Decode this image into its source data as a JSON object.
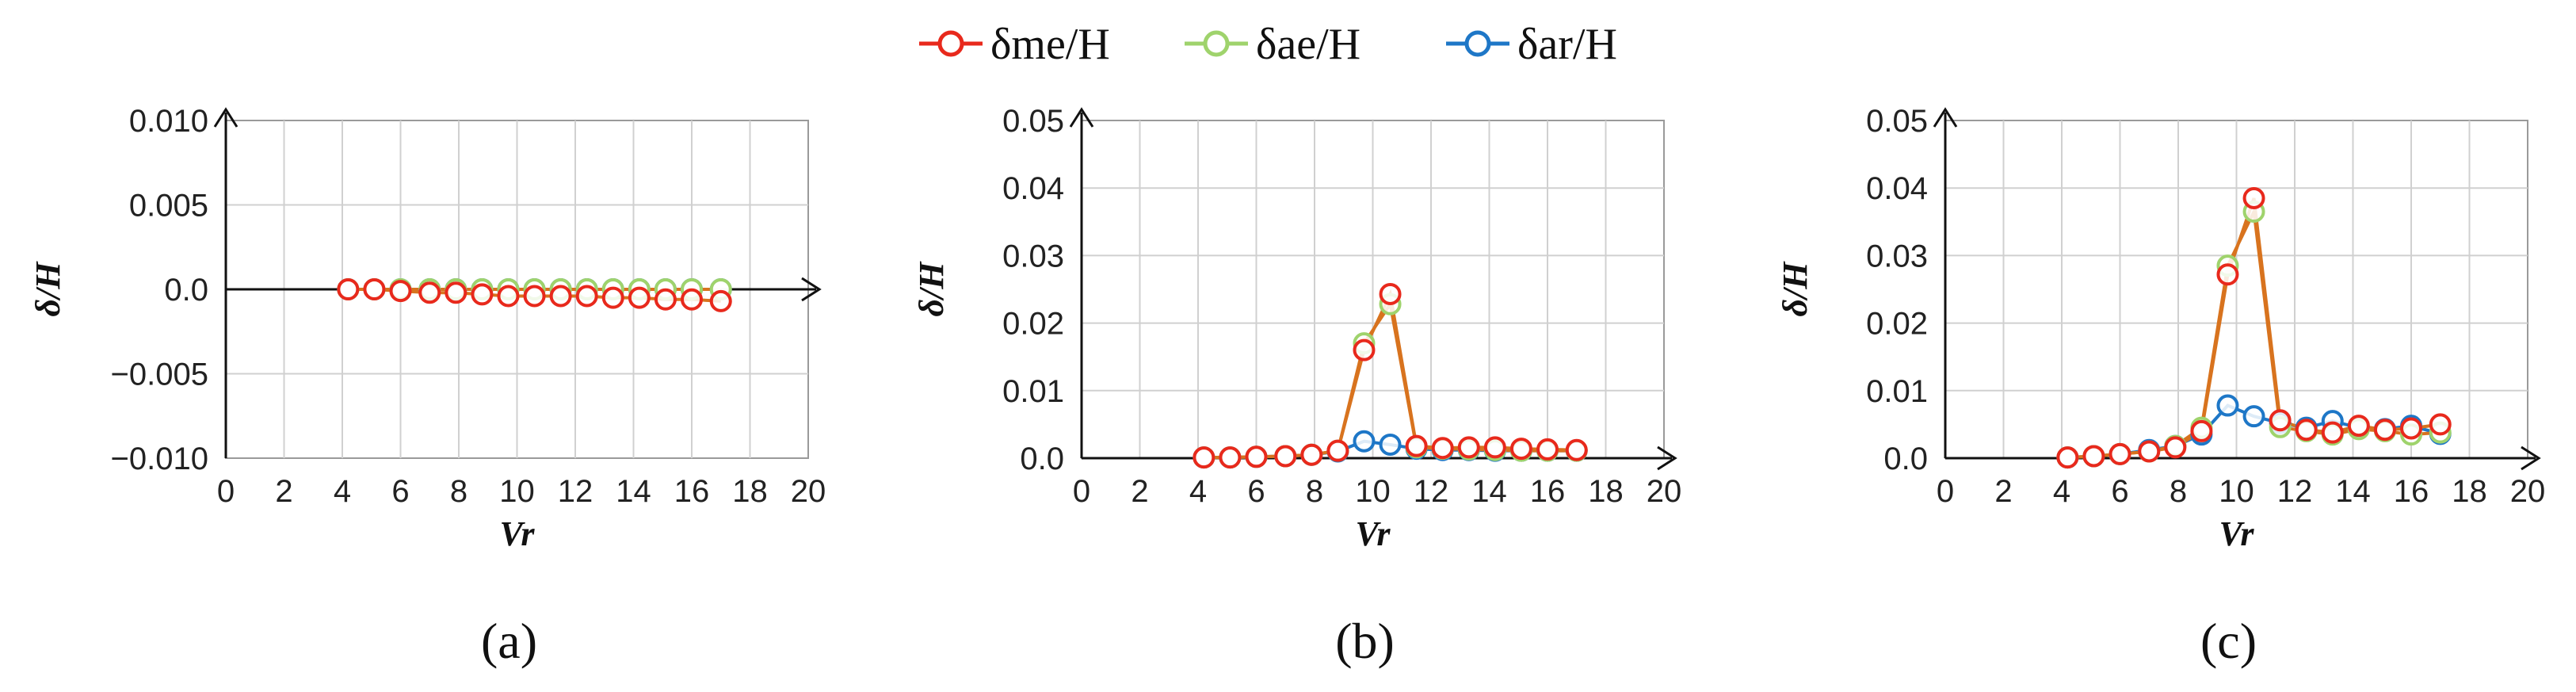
{
  "legend": [
    {
      "name": "δme/H",
      "color": "#e8291c"
    },
    {
      "name": "δae/H",
      "color": "#9fd36c"
    },
    {
      "name": "δar/H",
      "color": "#1e77c7"
    }
  ],
  "line_color": "#d8731e",
  "chart_data": [
    {
      "type": "line",
      "panel_label": "(a)",
      "xlabel": "Vr",
      "ylabel": "δ/H",
      "xlim": [
        0,
        20
      ],
      "ylim": [
        -0.01,
        0.01
      ],
      "xticks": [
        "0",
        "2",
        "4",
        "6",
        "8",
        "10",
        "12",
        "14",
        "16",
        "18",
        "20"
      ],
      "yticks": [
        {
          "v": -0.01,
          "label": "−0.010"
        },
        {
          "v": -0.005,
          "label": "−0.005"
        },
        {
          "v": 0,
          "label": "0.0"
        },
        {
          "v": 0.005,
          "label": "0.005"
        },
        {
          "v": 0.01,
          "label": "0.010"
        }
      ],
      "grid": true,
      "x": [
        4.2,
        5.1,
        6.0,
        7.0,
        7.9,
        8.8,
        9.7,
        10.6,
        11.5,
        12.4,
        13.3,
        14.2,
        15.1,
        16.0,
        17.0
      ],
      "series": [
        {
          "name": "δme/H",
          "values": [
            0.0,
            0.0,
            -0.0001,
            -0.0002,
            -0.0002,
            -0.0003,
            -0.0004,
            -0.0004,
            -0.0004,
            -0.0004,
            -0.0005,
            -0.0005,
            -0.0006,
            -0.0006,
            -0.0007
          ]
        },
        {
          "name": "δae/H",
          "values": [
            0.0,
            0.0,
            0.0,
            0.0,
            0.0,
            0.0,
            0.0,
            0.0,
            0.0,
            0.0,
            0.0,
            0.0,
            0.0,
            0.0,
            0.0
          ]
        },
        {
          "name": "δar/H",
          "values": [
            0.0,
            0.0,
            0.0,
            0.0,
            0.0,
            0.0,
            0.0,
            0.0,
            0.0,
            0.0,
            0.0,
            0.0,
            0.0,
            0.0,
            0.0
          ]
        }
      ]
    },
    {
      "type": "line",
      "panel_label": "(b)",
      "xlabel": "Vr",
      "ylabel": "δ/H",
      "xlim": [
        0,
        20
      ],
      "ylim": [
        0,
        0.05
      ],
      "xticks": [
        "0",
        "2",
        "4",
        "6",
        "8",
        "10",
        "12",
        "14",
        "16",
        "18",
        "20"
      ],
      "yticks": [
        {
          "v": 0,
          "label": "0.0"
        },
        {
          "v": 0.01,
          "label": "0.01"
        },
        {
          "v": 0.02,
          "label": "0.02"
        },
        {
          "v": 0.03,
          "label": "0.03"
        },
        {
          "v": 0.04,
          "label": "0.04"
        },
        {
          "v": 0.05,
          "label": "0.05"
        }
      ],
      "grid": true,
      "x": [
        4.2,
        5.1,
        6.0,
        7.0,
        7.9,
        8.8,
        9.7,
        10.6,
        11.5,
        12.4,
        13.3,
        14.2,
        15.1,
        16.0,
        17.0
      ],
      "series": [
        {
          "name": "δme/H",
          "values": [
            0.0001,
            0.0001,
            0.0002,
            0.0003,
            0.0005,
            0.0011,
            0.016,
            0.0243,
            0.0018,
            0.0015,
            0.0016,
            0.0016,
            0.0014,
            0.0013,
            0.0012
          ]
        },
        {
          "name": "δae/H",
          "values": [
            0.0001,
            0.0001,
            0.0002,
            0.0003,
            0.0005,
            0.0011,
            0.017,
            0.0228,
            0.0016,
            0.0014,
            0.0013,
            0.0012,
            0.0011,
            0.0011,
            0.0011
          ]
        },
        {
          "name": "δar/H",
          "values": [
            0.0001,
            0.0001,
            0.0002,
            0.0003,
            0.0005,
            0.001,
            0.0025,
            0.002,
            0.0014,
            0.0012,
            0.0012,
            0.0011,
            0.0011,
            0.0011,
            0.0011
          ]
        }
      ]
    },
    {
      "type": "line",
      "panel_label": "(c)",
      "xlabel": "Vr",
      "ylabel": "δ/H",
      "xlim": [
        0,
        20
      ],
      "ylim": [
        0,
        0.05
      ],
      "xticks": [
        "0",
        "2",
        "4",
        "6",
        "8",
        "10",
        "12",
        "14",
        "16",
        "18",
        "20"
      ],
      "yticks": [
        {
          "v": 0,
          "label": "0.0"
        },
        {
          "v": 0.01,
          "label": "0.01"
        },
        {
          "v": 0.02,
          "label": "0.02"
        },
        {
          "v": 0.03,
          "label": "0.03"
        },
        {
          "v": 0.04,
          "label": "0.04"
        },
        {
          "v": 0.05,
          "label": "0.05"
        }
      ],
      "grid": true,
      "x": [
        4.2,
        5.1,
        6.0,
        7.0,
        7.9,
        8.8,
        9.7,
        10.6,
        11.5,
        12.4,
        13.3,
        14.2,
        15.1,
        16.0,
        17.0
      ],
      "series": [
        {
          "name": "δme/H",
          "values": [
            0.0001,
            0.0003,
            0.0006,
            0.001,
            0.0016,
            0.004,
            0.0272,
            0.0385,
            0.0056,
            0.0042,
            0.0038,
            0.0048,
            0.0042,
            0.0044,
            0.005
          ]
        },
        {
          "name": "δae/H",
          "values": [
            0.0001,
            0.0003,
            0.0006,
            0.001,
            0.0018,
            0.0045,
            0.0285,
            0.0365,
            0.0046,
            0.004,
            0.0035,
            0.0043,
            0.004,
            0.0035,
            0.0038
          ]
        },
        {
          "name": "δar/H",
          "values": [
            0.0001,
            0.0003,
            0.0006,
            0.0012,
            0.0018,
            0.0035,
            0.0078,
            0.0062,
            0.0052,
            0.0045,
            0.0055,
            0.0045,
            0.0043,
            0.0048,
            0.0036
          ]
        }
      ]
    }
  ]
}
